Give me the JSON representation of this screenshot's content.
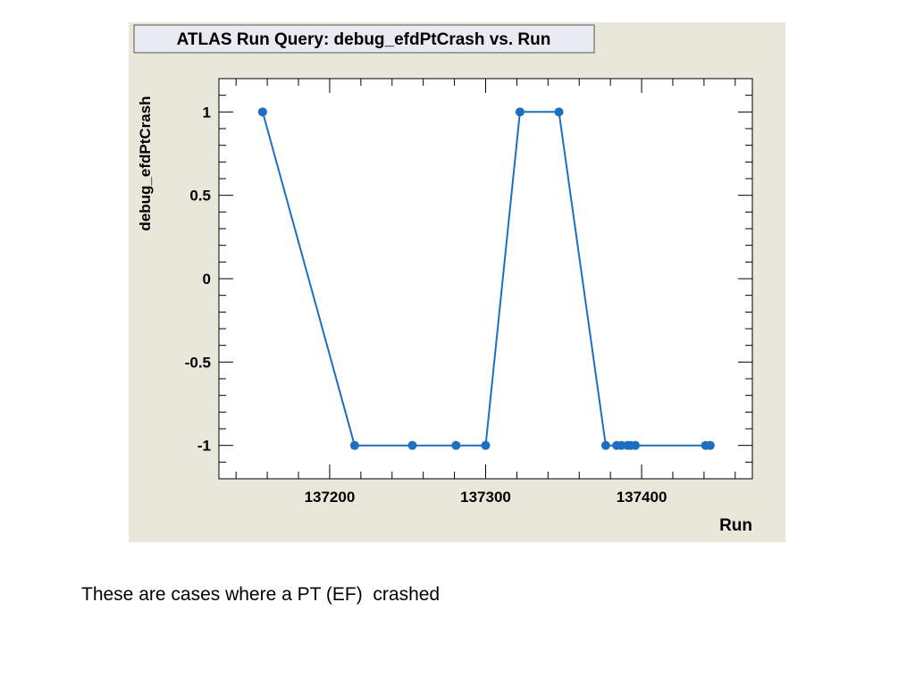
{
  "chart_data": {
    "type": "line",
    "title": "ATLAS Run Query: debug_efdPtCrash vs. Run",
    "xlabel": "Run",
    "ylabel": "debug_efdPtCrash",
    "xlim": [
      137129,
      137471
    ],
    "ylim": [
      -1.2,
      1.2
    ],
    "x_ticks": [
      137200,
      137300,
      137400
    ],
    "x_tick_labels": [
      "137200",
      "137300",
      "137400"
    ],
    "y_ticks": [
      1,
      0.5,
      0,
      -0.5,
      -1
    ],
    "y_tick_labels": [
      "1",
      "0.5",
      "0",
      "-0.5",
      "-1"
    ],
    "series": [
      {
        "color": "#1f6fc0",
        "marker": "circle",
        "points": [
          {
            "x": 137157,
            "y": 1
          },
          {
            "x": 137216,
            "y": -1
          },
          {
            "x": 137253,
            "y": -1
          },
          {
            "x": 137281,
            "y": -1
          },
          {
            "x": 137300,
            "y": -1
          },
          {
            "x": 137322,
            "y": 1
          },
          {
            "x": 137347,
            "y": 1
          },
          {
            "x": 137377,
            "y": -1
          },
          {
            "x": 137384,
            "y": -1
          },
          {
            "x": 137387,
            "y": -1
          },
          {
            "x": 137391,
            "y": -1
          },
          {
            "x": 137393,
            "y": -1
          },
          {
            "x": 137396,
            "y": -1
          },
          {
            "x": 137441,
            "y": -1
          },
          {
            "x": 137444,
            "y": -1
          }
        ]
      }
    ],
    "colors": {
      "frame_background": "#e9e6da",
      "plot_background": "#ffffff",
      "title_box": "#e8ebf2",
      "axis": "#000000",
      "series": "#1f6fc0"
    }
  },
  "caption": "These are cases where a PT (EF)  crashed"
}
